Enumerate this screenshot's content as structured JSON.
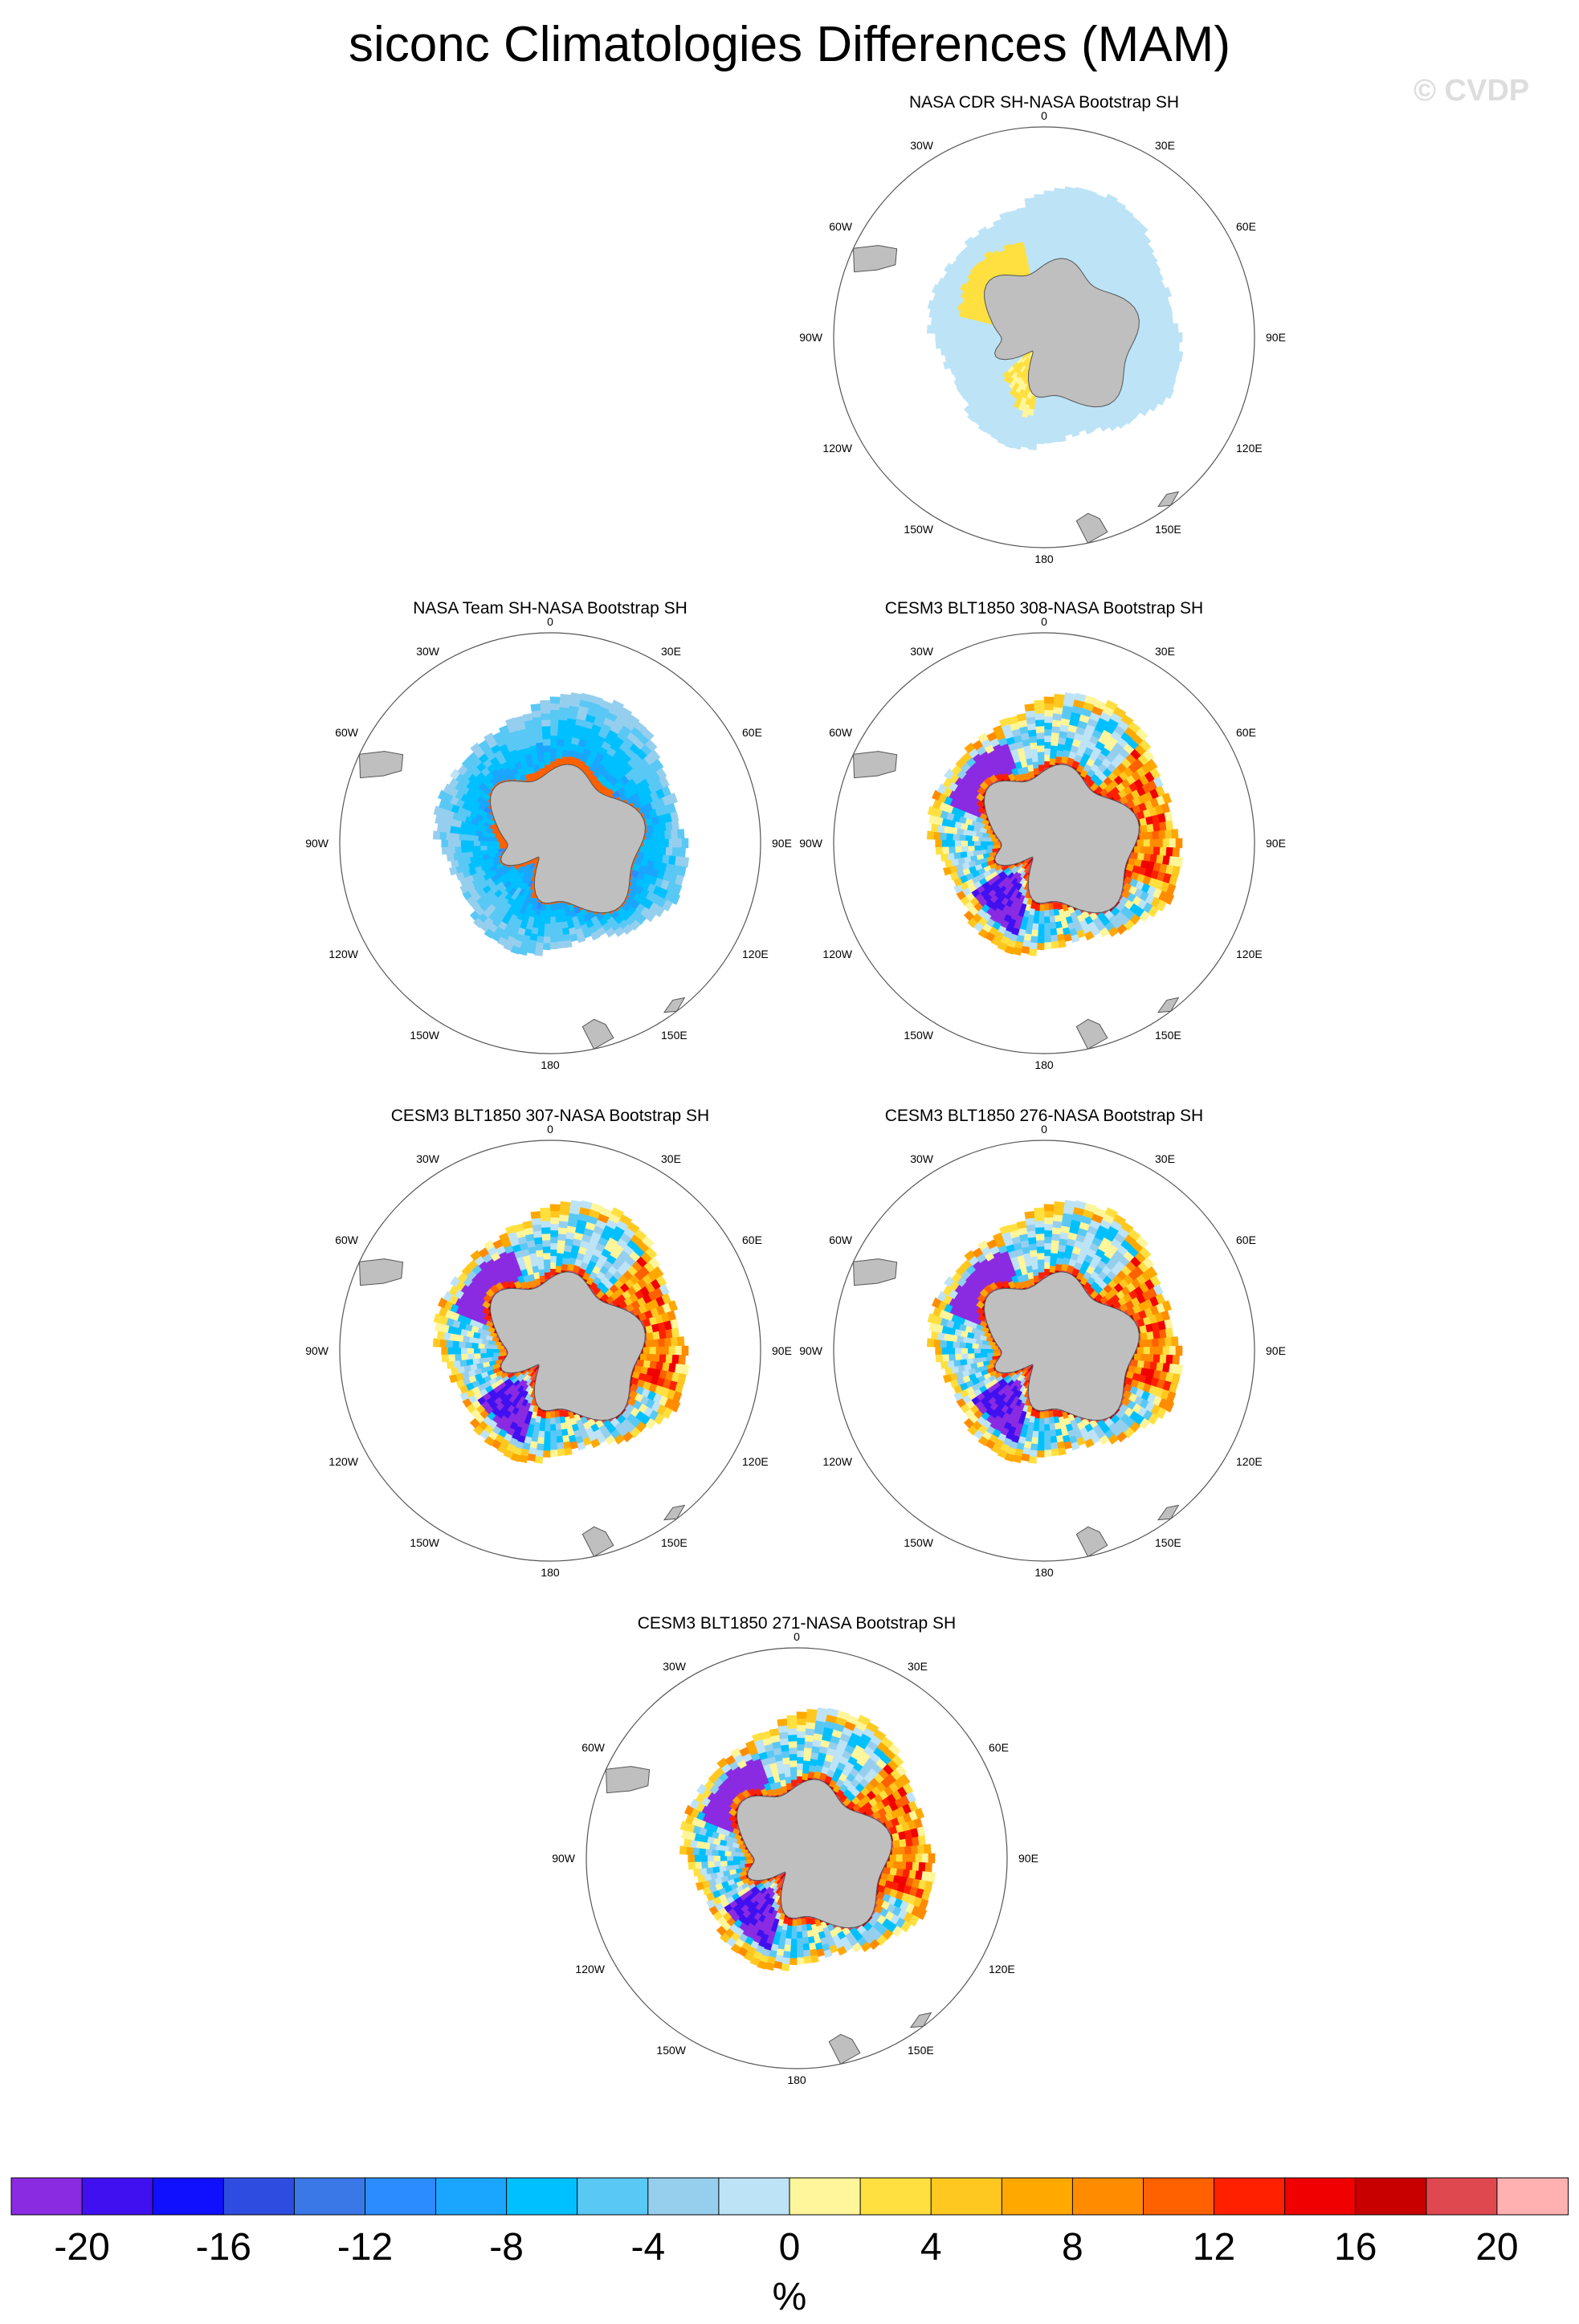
{
  "title": "siconc Climatologies Differences (MAM)",
  "watermark": "© CVDP",
  "lon_labels": [
    "0",
    "30E",
    "60E",
    "90E",
    "120E",
    "150E",
    "180",
    "150W",
    "120W",
    "90W",
    "60W",
    "30W"
  ],
  "colors": {
    "land": "#bfbfbf",
    "outline": "#555555",
    "missing": "#ffffff"
  },
  "panels": [
    {
      "title": "NASA CDR SH-NASA Bootstrap SH",
      "pattern": "cdr"
    },
    {
      "title": "NASA Team SH-NASA Bootstrap SH",
      "pattern": "team"
    },
    {
      "title": "CESM3 BLT1850 308-NASA Bootstrap SH",
      "pattern": "model"
    },
    {
      "title": "CESM3 BLT1850 307-NASA Bootstrap SH",
      "pattern": "model"
    },
    {
      "title": "CESM3 BLT1850 276-NASA Bootstrap SH",
      "pattern": "model"
    },
    {
      "title": "CESM3 BLT1850 271-NASA Bootstrap SH",
      "pattern": "model"
    }
  ],
  "colorbar": {
    "label": "%",
    "levels": [
      -20,
      -18,
      -16,
      -14,
      -12,
      -10,
      -8,
      -6,
      -4,
      -2,
      0,
      2,
      4,
      6,
      8,
      10,
      12,
      14,
      16,
      18,
      20
    ],
    "tick_labels": [
      "-20",
      "-16",
      "-12",
      "-8",
      "-4",
      "0",
      "4",
      "8",
      "12",
      "16",
      "20"
    ],
    "colors": [
      "#8a2be2",
      "#4010f0",
      "#1010ff",
      "#2e4de0",
      "#3a78e8",
      "#2a8cff",
      "#1aa6ff",
      "#00c0ff",
      "#5ac8f5",
      "#96cfee",
      "#bde3f7",
      "#fff59a",
      "#ffe040",
      "#ffc820",
      "#ffa800",
      "#ff8c00",
      "#ff6000",
      "#ff2000",
      "#f00000",
      "#c80000",
      "#e04850",
      "#ffb0b0"
    ]
  }
}
